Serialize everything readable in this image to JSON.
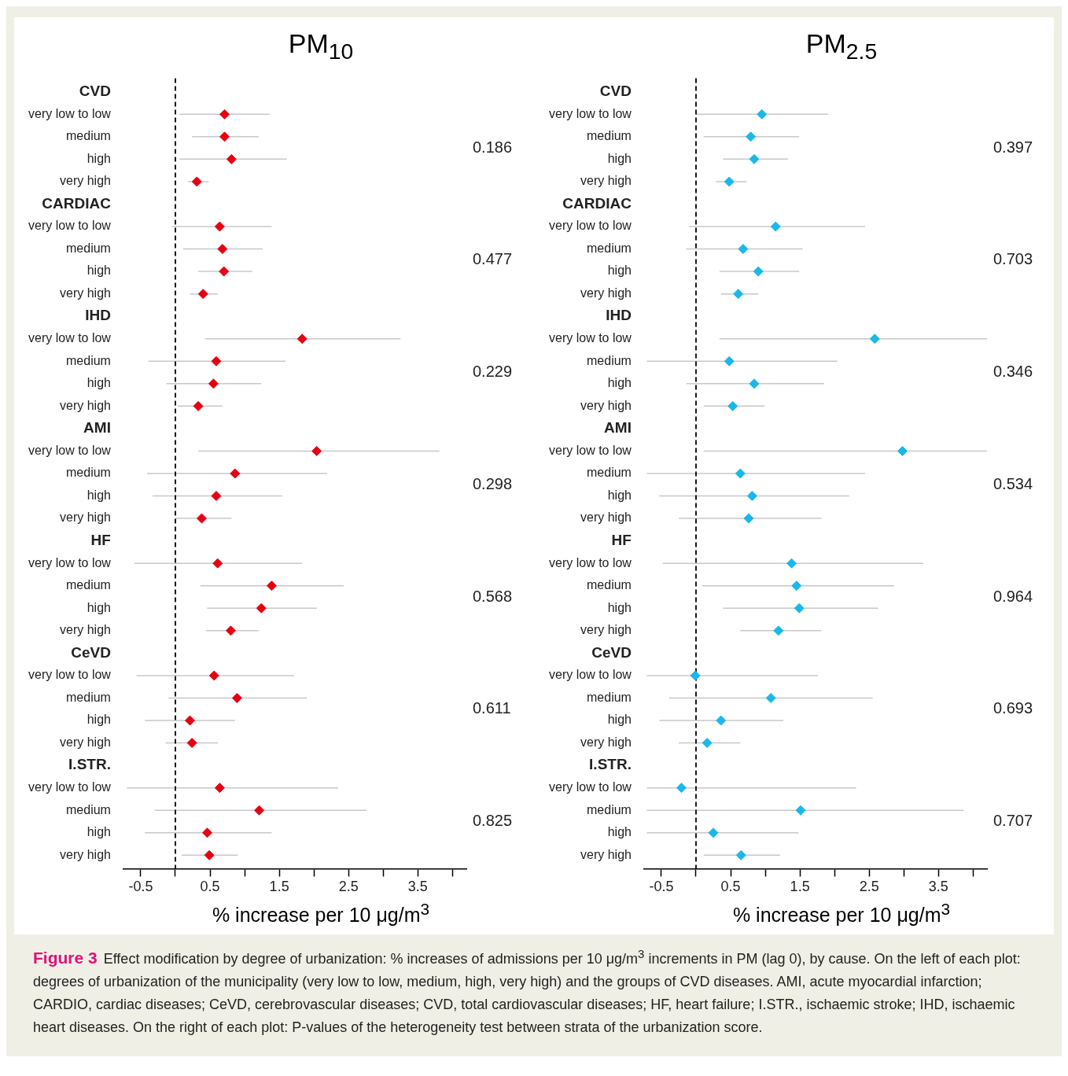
{
  "chart_data": [
    {
      "type": "scatter",
      "orientation": "horizontal",
      "title": "PM$_{10}$",
      "xlabel": "% increase per 10 μg/m$^{3}$",
      "color": "#e60012",
      "marker": "diamond",
      "categories": [
        "CVD",
        "very low to low",
        "medium",
        "high",
        "very high",
        "CARDIAC",
        "very low to low",
        "medium",
        "high",
        "very high",
        "IHD",
        "very low to low",
        "medium",
        "high",
        "very high",
        "AMI",
        "very low to low",
        "medium",
        "high",
        "very high",
        "HF",
        "very low to low",
        "medium",
        "high",
        "very high",
        "CeVD",
        "very low to low",
        "medium",
        "high",
        "very high",
        "I.STR.",
        "very low to low",
        "medium",
        "high",
        "very high"
      ],
      "values": [
        null,
        0.71,
        0.71,
        0.81,
        0.31,
        null,
        0.64,
        0.68,
        0.7,
        0.4,
        null,
        1.83,
        0.59,
        0.55,
        0.33,
        null,
        2.04,
        0.86,
        0.59,
        0.38,
        null,
        0.61,
        1.39,
        1.24,
        0.8,
        null,
        0.56,
        0.89,
        0.21,
        0.24,
        null,
        0.64,
        1.21,
        0.46,
        0.49
      ],
      "errors": [
        null,
        [
          0.06,
          1.36
        ],
        [
          0.24,
          1.2
        ],
        [
          0.06,
          1.61
        ],
        [
          0.18,
          0.48
        ],
        null,
        [
          -0.05,
          1.39
        ],
        [
          0.11,
          1.26
        ],
        [
          0.33,
          1.11
        ],
        [
          0.21,
          0.61
        ],
        null,
        [
          0.43,
          3.25
        ],
        [
          -0.39,
          1.59
        ],
        [
          -0.13,
          1.24
        ],
        [
          0.03,
          0.68
        ],
        null,
        [
          0.33,
          3.81
        ],
        [
          -0.41,
          2.19
        ],
        [
          -0.33,
          1.54
        ],
        [
          0.0,
          0.81
        ],
        null,
        [
          -0.59,
          1.83
        ],
        [
          0.36,
          2.43
        ],
        [
          0.46,
          2.04
        ],
        [
          0.44,
          1.2
        ],
        null,
        [
          -0.56,
          1.71
        ],
        [
          -0.1,
          1.9
        ],
        [
          -0.44,
          0.86
        ],
        [
          -0.14,
          0.61
        ],
        null,
        [
          -0.7,
          2.35
        ],
        [
          -0.3,
          2.76
        ],
        [
          -0.44,
          1.39
        ],
        [
          0.09,
          0.9
        ]
      ],
      "xlim": [
        -0.75,
        4.2
      ],
      "xticks": [
        -0.5,
        {
          "value": 0,
          "label": null
        },
        0.5,
        {
          "value": 1,
          "label": null
        },
        1.5,
        {
          "value": 2,
          "label": null
        },
        2.5,
        {
          "value": 3,
          "label": null
        },
        3.5,
        {
          "value": 4,
          "label": null
        }
      ],
      "ref_lines": [
        {
          "axis": "x",
          "value": 0,
          "color": "#000000",
          "line_style": "dashed"
        }
      ],
      "annotations": [
        "0.186",
        "0.477",
        "0.229",
        "0.298",
        "0.568",
        "0.611",
        "0.825"
      ]
    },
    {
      "type": "scatter",
      "orientation": "horizontal",
      "title": "PM$_{2.5}$",
      "xlabel": "% increase per 10 μg/m$^{3}$",
      "color": "#1ab8ea",
      "marker": "diamond",
      "categories": [
        "CVD",
        "very low to low",
        "medium",
        "high",
        "very high",
        "CARDIAC",
        "very low to low",
        "medium",
        "high",
        "very high",
        "IHD",
        "very low to low",
        "medium",
        "high",
        "very high",
        "AMI",
        "very low to low",
        "medium",
        "high",
        "very high",
        "HF",
        "very low to low",
        "medium",
        "high",
        "very high",
        "CeVD",
        "very low to low",
        "medium",
        "high",
        "very high",
        "I.STR.",
        "very low to low",
        "medium",
        "high",
        "very high"
      ],
      "values": [
        null,
        0.95,
        0.79,
        0.84,
        0.48,
        null,
        1.15,
        0.68,
        0.9,
        0.61,
        null,
        2.58,
        0.48,
        0.84,
        0.53,
        null,
        2.98,
        0.64,
        0.81,
        0.76,
        null,
        1.38,
        1.45,
        1.49,
        1.19,
        null,
        -0.01,
        1.08,
        0.36,
        0.16,
        null,
        -0.21,
        1.51,
        0.25,
        0.65
      ],
      "errors": [
        null,
        [
          0.0,
          1.91
        ],
        [
          0.11,
          1.49
        ],
        [
          0.39,
          1.33
        ],
        [
          0.29,
          0.73
        ],
        null,
        [
          -0.1,
          2.44
        ],
        [
          -0.14,
          1.54
        ],
        [
          0.34,
          1.49
        ],
        [
          0.36,
          0.9
        ],
        null,
        [
          0.34,
          4.2
        ],
        [
          -0.71,
          2.04
        ],
        [
          -0.14,
          1.85
        ],
        [
          0.11,
          0.99
        ],
        null,
        [
          0.11,
          4.2
        ],
        [
          -0.71,
          2.44
        ],
        [
          -0.53,
          2.21
        ],
        [
          -0.25,
          1.81
        ],
        null,
        [
          -0.48,
          3.28
        ],
        [
          0.09,
          2.86
        ],
        [
          0.39,
          2.63
        ],
        [
          0.64,
          1.81
        ],
        null,
        [
          -0.71,
          1.76
        ],
        [
          -0.39,
          2.55
        ],
        [
          -0.53,
          1.26
        ],
        [
          -0.25,
          0.64
        ],
        null,
        [
          -0.71,
          2.31
        ],
        [
          -0.71,
          3.86
        ],
        [
          -0.71,
          1.48
        ],
        [
          0.11,
          1.21
        ]
      ],
      "xlim": [
        -0.75,
        4.2
      ],
      "xticks": [
        -0.5,
        {
          "value": 0,
          "label": null
        },
        0.5,
        {
          "value": 1,
          "label": null
        },
        1.5,
        {
          "value": 2,
          "label": null
        },
        2.5,
        {
          "value": 3,
          "label": null
        },
        3.5,
        {
          "value": 4,
          "label": null
        }
      ],
      "ref_lines": [
        {
          "axis": "x",
          "value": 0,
          "color": "#000000",
          "line_style": "dashed"
        }
      ],
      "annotations": [
        "0.397",
        "0.703",
        "0.346",
        "0.534",
        "0.964",
        "0.693",
        "0.707"
      ]
    },
    {
      "type": "other",
      "title": "Figure 3",
      "annotations": [
        "Effect modification by degree of urbanization: % increases of admissions per 10 μg/m$^{3}$ increments in PM (lag 0), by cause. On the left of each plot: degrees of urbanization of the municipality (very low to low, medium, high, very high) and the groups of CVD diseases. AMI, acute myocardial infarction; CARDIO, cardiac diseases; CeVD, cerebrovascular diseases; CVD, total cardiovascular diseases; HF, heart failure; I.STR., ischaemic stroke; IHD, ischaemic heart diseases. On the right of each plot: P-values of the heterogeneity test between strata of the urbanization score."
      ]
    }
  ]
}
